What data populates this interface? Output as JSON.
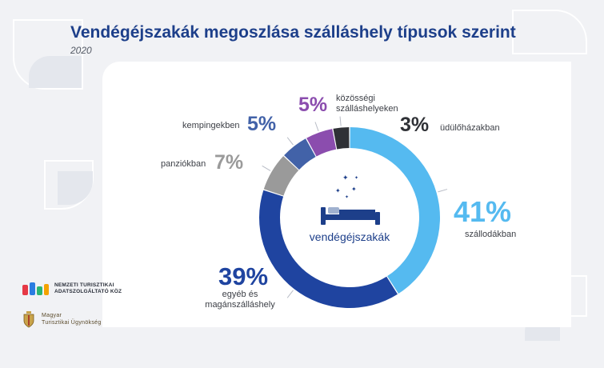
{
  "header": {
    "title": "Vendégéjszakák megoszlása szálláshely típusok szerint",
    "subtitle": "2020"
  },
  "center": {
    "icon": "bed-with-stars-icon",
    "label": "vendégéjszakák"
  },
  "colors": {
    "szallodakban": "#55baf0",
    "egyeb": "#1f44a0",
    "panziokban": "#9a9a9a",
    "kempingekben": "#4262a8",
    "kozossegi": "#8b4dae",
    "udulohazakban": "#2f3136",
    "title": "#1d3f8a"
  },
  "chart_data": {
    "type": "pie",
    "style": "donut",
    "title": "Vendégéjszakák megoszlása szálláshely típusok szerint",
    "subtitle": "2020",
    "center_label": "vendégéjszakák",
    "unit": "%",
    "slices": [
      {
        "key": "szallodakban",
        "label": "szállodákban",
        "value": 41,
        "value_text": "41%"
      },
      {
        "key": "egyeb",
        "label": "egyéb és magánszálláshely",
        "label_lines": [
          "egyéb és",
          "magánszálláshely"
        ],
        "value": 39,
        "value_text": "39%"
      },
      {
        "key": "panziokban",
        "label": "panziókban",
        "value": 7,
        "value_text": "7%"
      },
      {
        "key": "kempingekben",
        "label": "kempingekben",
        "value": 5,
        "value_text": "5%"
      },
      {
        "key": "kozossegi",
        "label": "közösségi szálláshelyeken",
        "label_lines": [
          "közösségi",
          "szálláshelyeken"
        ],
        "value": 5,
        "value_text": "5%"
      },
      {
        "key": "udulohazakban",
        "label": "üdülőházakban",
        "value": 3,
        "value_text": "3%"
      }
    ]
  },
  "footer": {
    "logo1_lines": [
      "NEMZETI TURISZTIKAI",
      "ADATSZOLGÁLTATÓ KÖZ"
    ],
    "logo1_icon": "ntak-logo-icon",
    "logo2_lines": [
      "Magyar",
      "Turisztikai Ügynökség"
    ],
    "logo2_icon": "coat-of-arms-icon"
  }
}
